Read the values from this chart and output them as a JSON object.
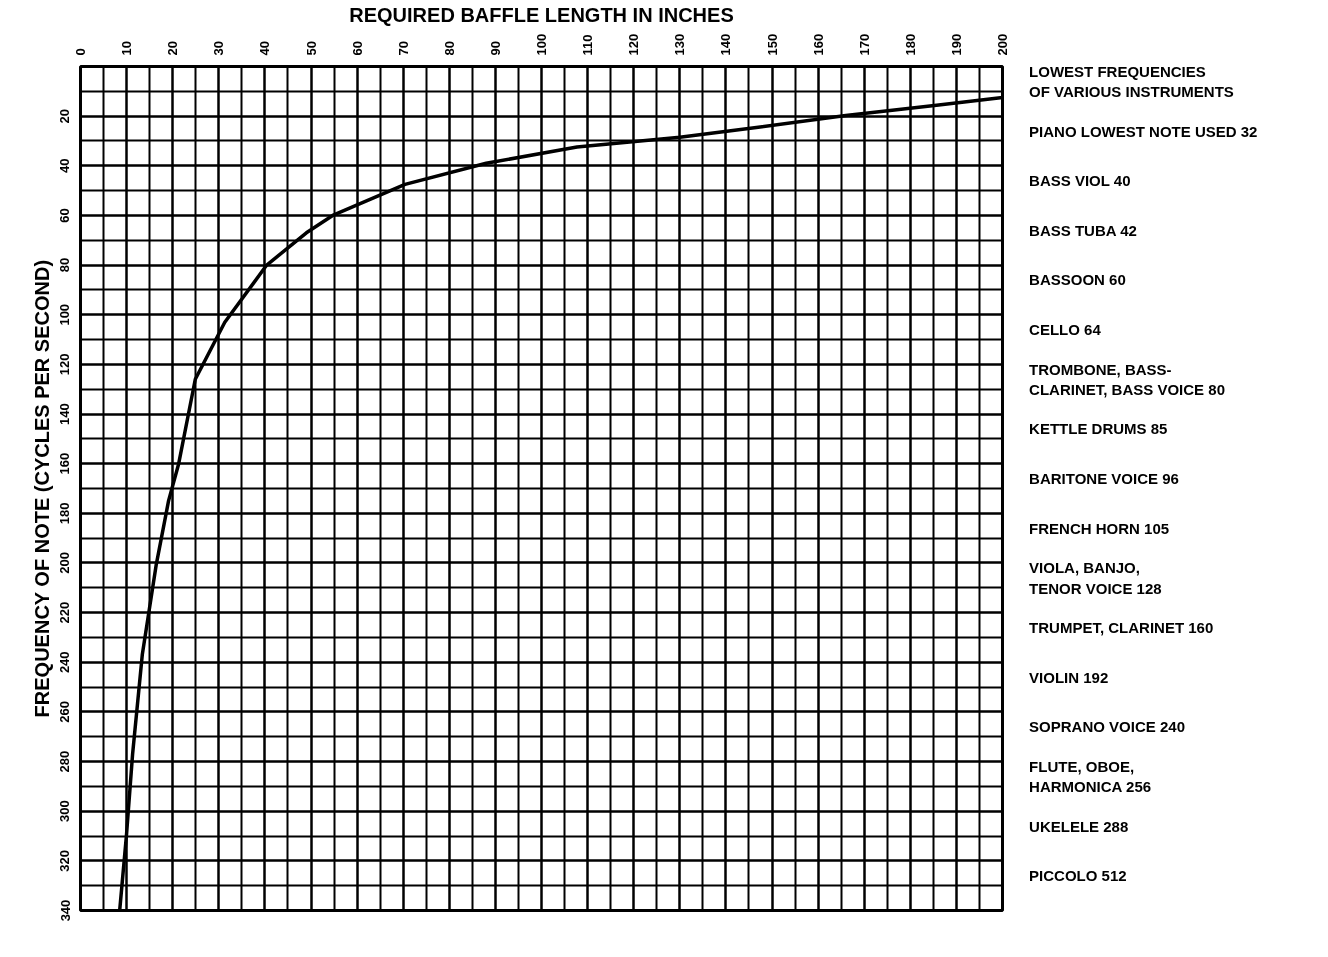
{
  "chart_data": {
    "type": "line",
    "xlabel": "REQUIRED BAFFLE LENGTH IN INCHES",
    "ylabel": "FREQUENCY OF NOTE (CYCLES PER SECOND)",
    "x": [
      8.5,
      10,
      11.3,
      13.4,
      16.4,
      19.1,
      21.3,
      24.9,
      31.3,
      40.4,
      49,
      54.7,
      70.4,
      88,
      107.7,
      130,
      146.6,
      166,
      185.7,
      200
    ],
    "series": [
      {
        "color": "#000000",
        "values": [
          340,
          309,
          277,
          237,
          201,
          175,
          160,
          126,
          103,
          80,
          67,
          60,
          47.5,
          39,
          32.4,
          28.5,
          24.6,
          19.7,
          15.6,
          12.5
        ]
      }
    ],
    "xlim": [
      0,
      200
    ],
    "ylim": [
      340,
      0
    ],
    "xticks": [
      0,
      10,
      20,
      30,
      40,
      50,
      60,
      70,
      80,
      90,
      100,
      110,
      120,
      130,
      140,
      150,
      160,
      170,
      180,
      190,
      200
    ],
    "yticks": [
      20,
      40,
      60,
      80,
      100,
      120,
      140,
      160,
      180,
      200,
      220,
      240,
      260,
      280,
      300,
      320,
      340
    ],
    "grid": true,
    "annotations": [
      "LOWEST FREQUENCIES\nOF VARIOUS INSTRUMENTS",
      "PIANO LOWEST NOTE USED 32",
      "BASS VIOL 40",
      "BASS TUBA 42",
      "BASSOON 60",
      "CELLO 64",
      "TROMBONE, BASS-\nCLARINET, BASS VOICE 80",
      "KETTLE DRUMS 85",
      "BARITONE VOICE 96",
      "FRENCH HORN 105",
      "VIOLA, BANJO,\nTENOR VOICE 128",
      "TRUMPET, CLARINET 160",
      "VIOLIN 192",
      "SOPRANO VOICE 240",
      "FLUTE, OBOE,\nHARMONICA 256",
      "UKELELE 288",
      "PICCOLO 512"
    ]
  }
}
